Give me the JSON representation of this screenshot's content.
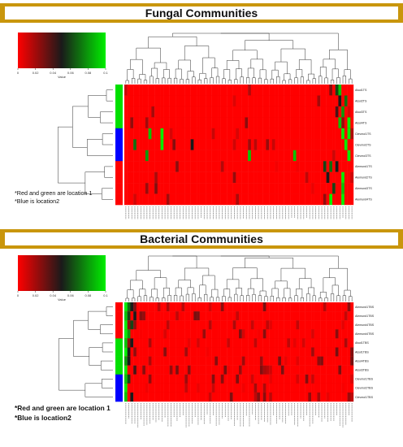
{
  "fungal": {
    "title": "Fungal Communities",
    "notes": [
      "*Red and green are location 1",
      "*Blue is location2"
    ],
    "color_key": {
      "label": "Value",
      "ticks": [
        "0",
        "0.02",
        "0.04",
        "0.06",
        "0.08",
        "0.1"
      ],
      "low_color": "#ff0000",
      "mid_color": "#1a1a1a",
      "high_color": "#00ee00"
    },
    "group_colors": [
      "#00e000",
      "#0000ff",
      "#ff0000"
    ]
  },
  "bacterial": {
    "title": "Bacterial Communities",
    "notes": [
      "*Red and green are location 1",
      "*Blue is location2"
    ],
    "color_key": {
      "label": "Value",
      "ticks": [
        "0",
        "0.02",
        "0.04",
        "0.06",
        "0.08",
        "0.1"
      ],
      "low_color": "#ff0000",
      "mid_color": "#1a1a1a",
      "high_color": "#00ee00"
    },
    "group_colors": [
      "#ff0000",
      "#00e000",
      "#0000ff"
    ]
  },
  "chart_data": [
    {
      "type": "heatmap",
      "title": "Fungal Communities",
      "rows": [
        "Alsol1TS",
        "Alsol2TS",
        "Alsol3TS",
        "Alsol4TS",
        "Clevmol1TS",
        "Clevmol2TS",
        "Clevmol3TS",
        "Alemund1TS",
        "Alemund2TS",
        "Alemund3TS",
        "Alemund4TS"
      ],
      "row_groups": [
        0,
        0,
        0,
        0,
        1,
        1,
        1,
        2,
        2,
        2,
        2
      ],
      "n_columns": 76,
      "value_range": [
        0,
        0.1
      ],
      "base_value": 0.0,
      "hotspots": [
        {
          "row": 0,
          "col": 70,
          "value": 0.06
        },
        {
          "row": 0,
          "col": 71,
          "value": 0.09
        },
        {
          "row": 1,
          "col": 71,
          "value": 0.05
        },
        {
          "row": 1,
          "col": 73,
          "value": 0.07
        },
        {
          "row": 2,
          "col": 70,
          "value": 0.04
        },
        {
          "row": 2,
          "col": 72,
          "value": 0.08
        },
        {
          "row": 3,
          "col": 71,
          "value": 0.09
        },
        {
          "row": 3,
          "col": 74,
          "value": 0.1
        },
        {
          "row": 4,
          "col": 8,
          "value": 0.09
        },
        {
          "row": 4,
          "col": 12,
          "value": 0.1
        },
        {
          "row": 4,
          "col": 72,
          "value": 0.1
        },
        {
          "row": 4,
          "col": 74,
          "value": 0.1
        },
        {
          "row": 5,
          "col": 3,
          "value": 0.07
        },
        {
          "row": 5,
          "col": 12,
          "value": 0.1
        },
        {
          "row": 5,
          "col": 22,
          "value": 0.05
        },
        {
          "row": 5,
          "col": 73,
          "value": 0.1
        },
        {
          "row": 6,
          "col": 7,
          "value": 0.08
        },
        {
          "row": 6,
          "col": 41,
          "value": 0.09
        },
        {
          "row": 6,
          "col": 56,
          "value": 0.09
        },
        {
          "row": 6,
          "col": 74,
          "value": 0.1
        },
        {
          "row": 7,
          "col": 66,
          "value": 0.06
        },
        {
          "row": 7,
          "col": 68,
          "value": 0.07
        },
        {
          "row": 7,
          "col": 70,
          "value": 0.05
        },
        {
          "row": 8,
          "col": 67,
          "value": 0.05
        },
        {
          "row": 8,
          "col": 72,
          "value": 0.1
        },
        {
          "row": 9,
          "col": 69,
          "value": 0.06
        },
        {
          "row": 9,
          "col": 72,
          "value": 0.09
        },
        {
          "row": 10,
          "col": 68,
          "value": 0.1
        },
        {
          "row": 10,
          "col": 72,
          "value": 0.1
        }
      ]
    },
    {
      "type": "heatmap",
      "title": "Bacterial Communities",
      "rows": [
        "Alemund1TBS",
        "Alemund1TBS",
        "Alemund4TBS",
        "Alemund4TBS",
        "Alsol1TBS",
        "Alsol1TBS",
        "Alsol4TBS",
        "Alsol3TBS",
        "Clevmol1TBS",
        "Clevmol2TBS",
        "Clevmol1TBS"
      ],
      "row_groups": [
        0,
        0,
        0,
        0,
        1,
        1,
        1,
        1,
        2,
        2,
        2
      ],
      "n_columns": 76,
      "value_range": [
        0,
        0.1
      ],
      "base_value": 0.0,
      "hotspots": [
        {
          "row": 0,
          "col": 0,
          "value": 0.1
        },
        {
          "row": 0,
          "col": 1,
          "value": 0.07
        },
        {
          "row": 0,
          "col": 2,
          "value": 0.05
        },
        {
          "row": 1,
          "col": 0,
          "value": 0.09
        },
        {
          "row": 1,
          "col": 1,
          "value": 0.06
        },
        {
          "row": 1,
          "col": 3,
          "value": 0.05
        },
        {
          "row": 2,
          "col": 0,
          "value": 0.1
        },
        {
          "row": 2,
          "col": 2,
          "value": 0.06
        },
        {
          "row": 3,
          "col": 0,
          "value": 0.1
        },
        {
          "row": 3,
          "col": 1,
          "value": 0.08
        },
        {
          "row": 4,
          "col": 0,
          "value": 0.09
        },
        {
          "row": 4,
          "col": 2,
          "value": 0.05
        },
        {
          "row": 5,
          "col": 0,
          "value": 0.1
        },
        {
          "row": 5,
          "col": 1,
          "value": 0.05
        },
        {
          "row": 6,
          "col": 0,
          "value": 0.08
        },
        {
          "row": 6,
          "col": 1,
          "value": 0.05
        },
        {
          "row": 7,
          "col": 0,
          "value": 0.1
        },
        {
          "row": 7,
          "col": 3,
          "value": 0.04
        },
        {
          "row": 8,
          "col": 0,
          "value": 0.09
        },
        {
          "row": 8,
          "col": 1,
          "value": 0.06
        },
        {
          "row": 9,
          "col": 0,
          "value": 0.1
        },
        {
          "row": 10,
          "col": 0,
          "value": 0.09
        },
        {
          "row": 10,
          "col": 2,
          "value": 0.05
        }
      ]
    }
  ]
}
